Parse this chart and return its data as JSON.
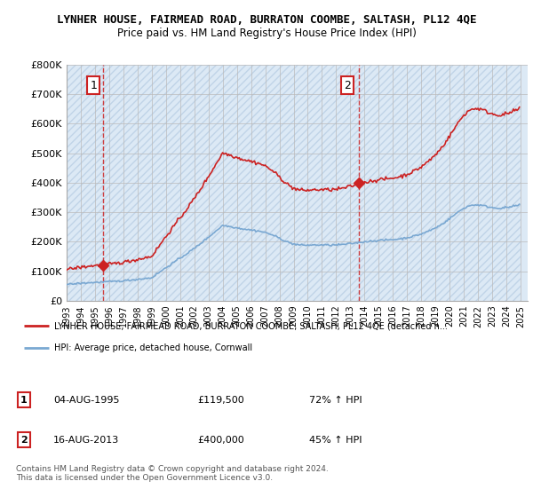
{
  "title": "LYNHER HOUSE, FAIRMEAD ROAD, BURRATON COOMBE, SALTASH, PL12 4QE",
  "subtitle": "Price paid vs. HM Land Registry's House Price Index (HPI)",
  "ylim": [
    0,
    800000
  ],
  "yticks": [
    0,
    100000,
    200000,
    300000,
    400000,
    500000,
    600000,
    700000,
    800000
  ],
  "ytick_labels": [
    "£0",
    "£100K",
    "£200K",
    "£300K",
    "£400K",
    "£500K",
    "£600K",
    "£700K",
    "£800K"
  ],
  "sale1_x": 1995.58,
  "sale1_price": 119500,
  "sale2_x": 2013.62,
  "sale2_price": 400000,
  "hpi_color": "#7aa8d2",
  "price_color": "#cc2222",
  "vline_color": "#cc2222",
  "bg_color": "#dce9f5",
  "hatch_color": "#c0d4e8",
  "legend_house": "LYNHER HOUSE, FAIRMEAD ROAD, BURRATON COOMBE, SALTASH, PL12 4QE (detached h...",
  "legend_hpi": "HPI: Average price, detached house, Cornwall",
  "footer": "Contains HM Land Registry data © Crown copyright and database right 2024.\nThis data is licensed under the Open Government Licence v3.0.",
  "table": [
    [
      "1",
      "04-AUG-1995",
      "£119,500",
      "72% ↑ HPI"
    ],
    [
      "2",
      "16-AUG-2013",
      "£400,000",
      "45% ↑ HPI"
    ]
  ]
}
